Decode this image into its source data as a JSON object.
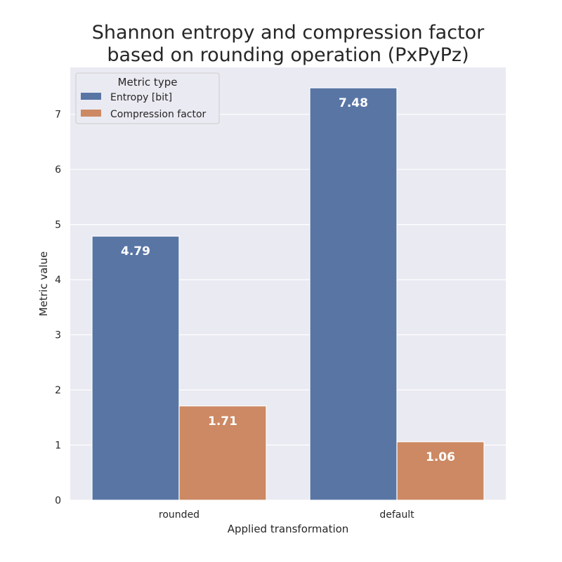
{
  "chart_data": {
    "type": "bar",
    "title_lines": [
      "Shannon entropy and compression factor",
      "based on rounding operation (PxPyPz)"
    ],
    "xlabel": "Applied transformation",
    "ylabel": "Metric value",
    "categories": [
      "rounded",
      "default"
    ],
    "series": [
      {
        "name": "Entropy [bit]",
        "values": [
          4.79,
          7.48
        ],
        "color": "#5875a4"
      },
      {
        "name": "Compression factor",
        "values": [
          1.71,
          1.06
        ],
        "color": "#cc8963"
      }
    ],
    "data_labels": [
      [
        "4.79",
        "7.48"
      ],
      [
        "1.71",
        "1.06"
      ]
    ],
    "ylim": [
      0,
      7.85
    ],
    "yticks": [
      0,
      1,
      2,
      3,
      4,
      5,
      6,
      7
    ],
    "grid": true,
    "legend": {
      "title": "Metric type",
      "placement": "top-left"
    },
    "background": "#eaeaf2"
  }
}
